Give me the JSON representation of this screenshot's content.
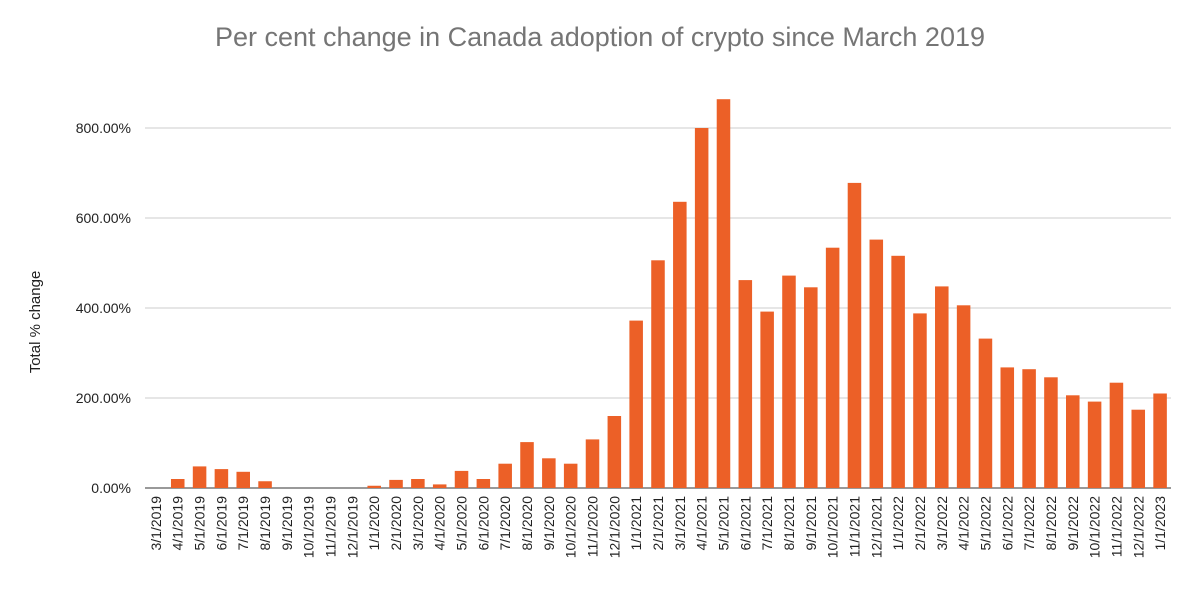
{
  "chart_data": {
    "type": "bar",
    "title": "Per cent change in Canada adoption of crypto since March 2019",
    "xlabel": "",
    "ylabel": "Total % change",
    "ylim": [
      0,
      900
    ],
    "yticks": [
      0,
      200,
      400,
      600,
      800
    ],
    "ytick_labels": [
      "0.00%",
      "200.00%",
      "400.00%",
      "600.00%",
      "800.00%"
    ],
    "grid": true,
    "bar_color": "#ec6027",
    "categories": [
      "3/1/2019",
      "4/1/2019",
      "5/1/2019",
      "6/1/2019",
      "7/1/2019",
      "8/1/2019",
      "9/1/2019",
      "10/1/2019",
      "11/1/2019",
      "12/1/2019",
      "1/1/2020",
      "2/1/2020",
      "3/1/2020",
      "4/1/2020",
      "5/1/2020",
      "6/1/2020",
      "7/1/2020",
      "8/1/2020",
      "9/1/2020",
      "10/1/2020",
      "11/1/2020",
      "12/1/2020",
      "1/1/2021",
      "2/1/2021",
      "3/1/2021",
      "4/1/2021",
      "5/1/2021",
      "6/1/2021",
      "7/1/2021",
      "8/1/2021",
      "9/1/2021",
      "10/1/2021",
      "11/1/2021",
      "12/1/2021",
      "1/1/2022",
      "2/1/2022",
      "3/1/2022",
      "4/1/2022",
      "5/1/2022",
      "6/1/2022",
      "7/1/2022",
      "8/1/2022",
      "9/1/2022",
      "10/1/2022",
      "11/1/2022",
      "12/1/2022",
      "1/1/2023"
    ],
    "tick_labels": [
      "3/1/2019",
      "4/1/2019",
      "5/1/2019",
      "6/1/2019",
      "7/1/2019",
      "8/1/2019",
      "9/1/2019",
      "10/1/2019",
      "11/1/2019",
      "12/1/2019",
      "1/1/2020",
      "2/1/2020",
      "3/1/2020",
      "4/1/2020",
      "5/1/2020",
      "6/1/2020",
      "7/1/2020",
      "8/1/2020",
      "9/1/2020",
      "10/1/2020",
      "11/1/2020",
      "12/1/2020",
      "1/1/2021",
      "2/1/2021",
      "3/1/2021",
      "4/1/2021",
      "5/1/2021",
      "6/1/2021",
      "7/1/2021",
      "8/1/2021",
      "9/1/2021",
      "10/1/2021",
      "11/1/2021",
      "12/1/2021",
      "1/1/2022",
      "2/1/2022",
      "3/1/2022",
      "4/1/2022",
      "5/1/2022",
      "6/1/2022",
      "7/1/2022",
      "8/1/2022",
      "9/1/2022",
      "10/1/2022",
      "11/1/2022",
      "12/1/2022",
      "1/1/2023"
    ],
    "values": [
      0,
      20,
      48,
      42,
      36,
      15,
      0,
      0,
      0,
      0,
      5,
      18,
      20,
      8,
      38,
      20,
      54,
      102,
      66,
      54,
      108,
      160,
      372,
      506,
      636,
      800,
      864,
      462,
      392,
      472,
      446,
      534,
      678,
      552,
      516,
      388,
      448,
      406,
      332,
      268,
      264,
      246,
      206,
      192,
      234,
      174,
      210
    ]
  }
}
